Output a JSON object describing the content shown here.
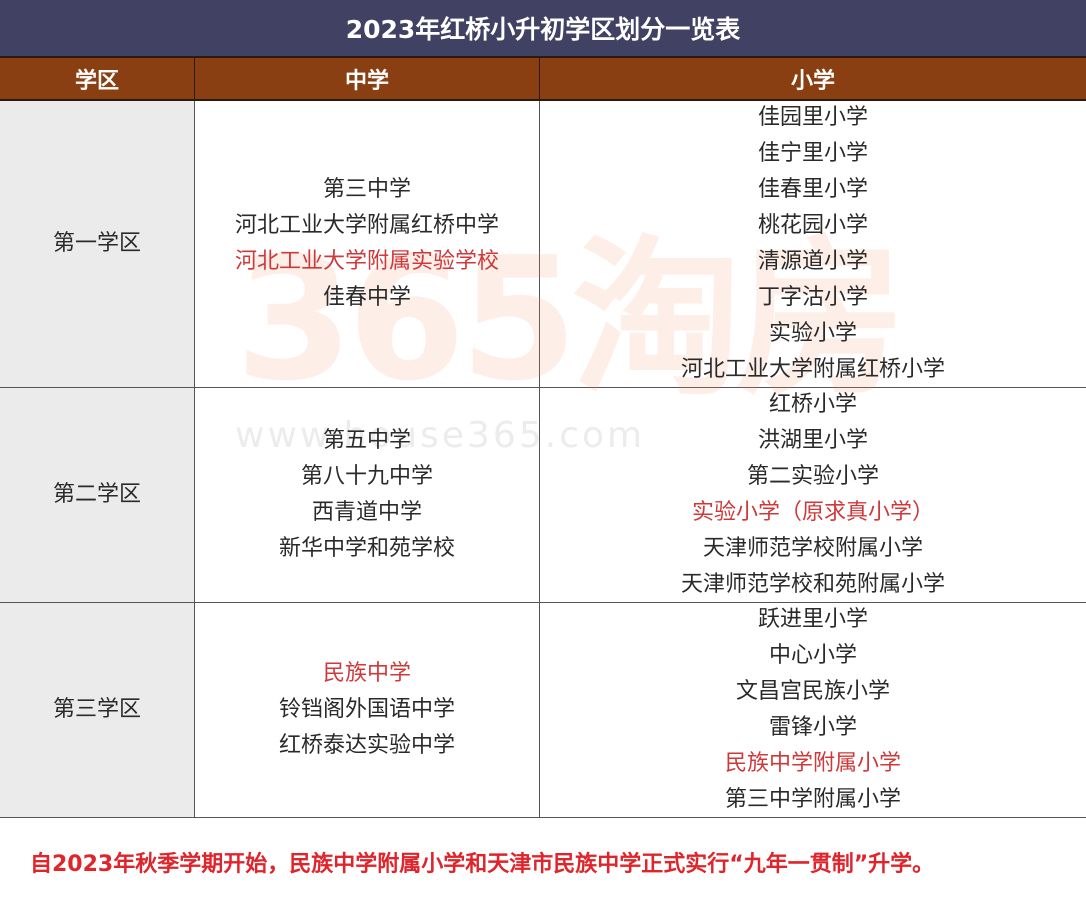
{
  "title": "2023年红桥小升初学区划分一览表",
  "headers": {
    "district": "学区",
    "middle": "中学",
    "primary": "小学"
  },
  "rows": [
    {
      "district": "第一学区",
      "middle": [
        {
          "name": "第三中学",
          "highlight": false
        },
        {
          "name": "河北工业大学附属红桥中学",
          "highlight": false
        },
        {
          "name": "河北工业大学附属实验学校",
          "highlight": true
        },
        {
          "name": "佳春中学",
          "highlight": false
        }
      ],
      "primary": [
        {
          "name": "佳园里小学",
          "highlight": false
        },
        {
          "name": "佳宁里小学",
          "highlight": false
        },
        {
          "name": "佳春里小学",
          "highlight": false
        },
        {
          "name": "桃花园小学",
          "highlight": false
        },
        {
          "name": "清源道小学",
          "highlight": false
        },
        {
          "name": "丁字沽小学",
          "highlight": false
        },
        {
          "name": "实验小学",
          "highlight": false
        },
        {
          "name": "河北工业大学附属红桥小学",
          "highlight": false
        }
      ]
    },
    {
      "district": "第二学区",
      "middle": [
        {
          "name": "第五中学",
          "highlight": false
        },
        {
          "name": "第八十九中学",
          "highlight": false
        },
        {
          "name": "西青道中学",
          "highlight": false
        },
        {
          "name": "新华中学和苑学校",
          "highlight": false
        }
      ],
      "primary": [
        {
          "name": "红桥小学",
          "highlight": false
        },
        {
          "name": "洪湖里小学",
          "highlight": false
        },
        {
          "name": "第二实验小学",
          "highlight": false
        },
        {
          "name": "实验小学（原求真小学）",
          "highlight": true
        },
        {
          "name": "天津师范学校附属小学",
          "highlight": false
        },
        {
          "name": "天津师范学校和苑附属小学",
          "highlight": false
        }
      ]
    },
    {
      "district": "第三学区",
      "middle": [
        {
          "name": "民族中学",
          "highlight": true
        },
        {
          "name": "铃铛阁外国语中学",
          "highlight": false
        },
        {
          "name": "红桥泰达实验中学",
          "highlight": false
        }
      ],
      "primary": [
        {
          "name": "跃进里小学",
          "highlight": false
        },
        {
          "name": "中心小学",
          "highlight": false
        },
        {
          "name": "文昌宫民族小学",
          "highlight": false
        },
        {
          "name": "雷锋小学",
          "highlight": false
        },
        {
          "name": "民族中学附属小学",
          "highlight": true
        },
        {
          "name": "第三中学附属小学",
          "highlight": false
        }
      ]
    }
  ],
  "footer_note": "自2023年秋季学期开始，民族中学附属小学和天津市民族中学正式实行“九年一贯制”升学。",
  "watermark": {
    "logo": "365淘房",
    "url": "www.house365.com"
  },
  "colors": {
    "title_bg": "#414163",
    "header_bg": "#8a3f12",
    "highlight": "#d0383a",
    "district_bg": "#ebebeb"
  }
}
